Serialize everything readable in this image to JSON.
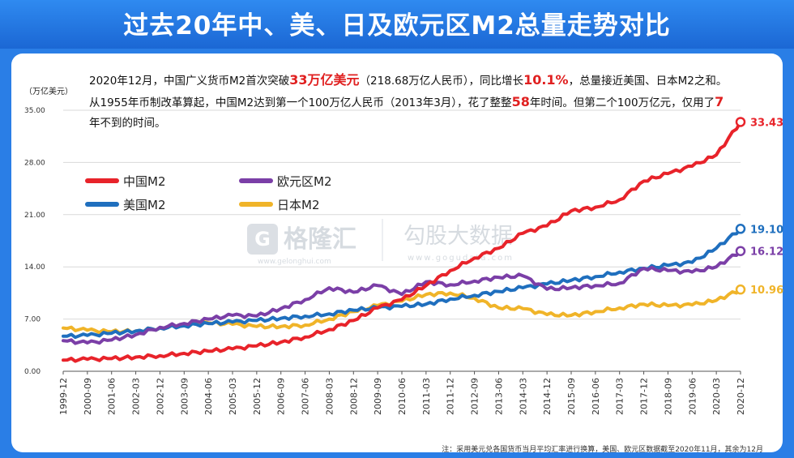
{
  "title": "过去20年中、美、日及欧元区M2总量走势对比",
  "description": {
    "p1": "2020年12月，中国广义货币M2首次突破",
    "h1": "33万亿美元",
    "p2": "（218.68万亿人民币），同比增长",
    "h2": "10.1%",
    "p3": "，总量接近美国、日本M2之和。从1955年币制改革算起，中国M2达到第一个100万亿人民币（2013年3月），花了整整",
    "h3": "58",
    "p4": "年时间。但第二个100万亿元，仅用了",
    "h4": "7",
    "p5": "年不到的时间。"
  },
  "watermark": {
    "brand": "格隆汇",
    "brand_url": "www.gelonghui.com",
    "brand2": "勾股大数据",
    "brand2_url": "www.gogudata.com"
  },
  "note": "注：采用美元兑各国货币当月平均汇率进行换算，美国、欧元区数据截至2020年11月，其余为12月",
  "colors": {
    "china": "#e8232a",
    "eurozone": "#7b3fa7",
    "usa": "#1f6fbe",
    "japan": "#f0b429"
  },
  "chart_data": {
    "type": "line",
    "title": "过去20年中、美、日及欧元区M2总量走势对比",
    "ylabel": "（万亿美元）",
    "xlabel": "",
    "ylim": [
      0,
      35
    ],
    "yticks": [
      "0.00",
      "7.00",
      "14.00",
      "21.00",
      "28.00",
      "35.00"
    ],
    "yticks_values": [
      0,
      7,
      14,
      21,
      28,
      35
    ],
    "categories": [
      "1999-12",
      "2000-09",
      "2001-06",
      "2002-03",
      "2002-12",
      "2003-09",
      "2004-06",
      "2005-03",
      "2005-12",
      "2006-09",
      "2007-06",
      "2008-03",
      "2008-12",
      "2009-09",
      "2010-06",
      "2011-03",
      "2011-12",
      "2012-09",
      "2013-06",
      "2014-03",
      "2014-12",
      "2015-09",
      "2016-06",
      "2017-03",
      "2017-12",
      "2018-09",
      "2019-06",
      "2020-03",
      "2020-12"
    ],
    "legend": [
      "中国M2",
      "欧元区M2",
      "美国M2",
      "日本M2"
    ],
    "series": [
      {
        "name": "中国M2",
        "key": "china",
        "values": [
          1.5,
          1.6,
          1.7,
          1.9,
          2.1,
          2.4,
          2.7,
          3.0,
          3.4,
          3.9,
          4.6,
          5.6,
          6.8,
          8.5,
          9.6,
          11.5,
          13.5,
          15.2,
          16.5,
          18.5,
          19.5,
          21.5,
          22.0,
          23.0,
          25.5,
          26.5,
          27.5,
          29.0,
          33.43
        ],
        "end_label": "33.43"
      },
      {
        "name": "欧元区M2",
        "key": "eurozone",
        "values": [
          4.1,
          3.8,
          4.2,
          4.9,
          5.9,
          6.4,
          7.0,
          7.5,
          7.4,
          8.4,
          9.6,
          11.2,
          10.6,
          11.5,
          10.3,
          12.0,
          11.6,
          12.1,
          12.6,
          12.8,
          11.0,
          11.2,
          11.5,
          11.8,
          13.8,
          13.5,
          13.3,
          14.0,
          16.12
        ],
        "end_label": "16.12"
      },
      {
        "name": "美国M2",
        "key": "usa",
        "values": [
          4.7,
          4.8,
          5.1,
          5.4,
          5.8,
          6.1,
          6.4,
          6.6,
          6.8,
          7.1,
          7.4,
          7.7,
          8.2,
          8.5,
          8.7,
          9.0,
          9.7,
          10.2,
          10.7,
          11.2,
          11.7,
          12.2,
          12.7,
          13.3,
          13.8,
          14.2,
          14.6,
          16.5,
          19.1
        ],
        "end_label": "19.10"
      },
      {
        "name": "日本M2",
        "key": "japan",
        "values": [
          5.8,
          5.5,
          5.3,
          5.4,
          5.8,
          6.2,
          6.5,
          6.3,
          6.0,
          6.0,
          6.2,
          7.0,
          8.0,
          8.8,
          9.4,
          10.3,
          10.5,
          9.8,
          8.5,
          8.4,
          7.6,
          7.5,
          8.0,
          8.5,
          9.0,
          8.8,
          8.9,
          9.5,
          10.96
        ],
        "end_label": "10.96"
      }
    ]
  }
}
